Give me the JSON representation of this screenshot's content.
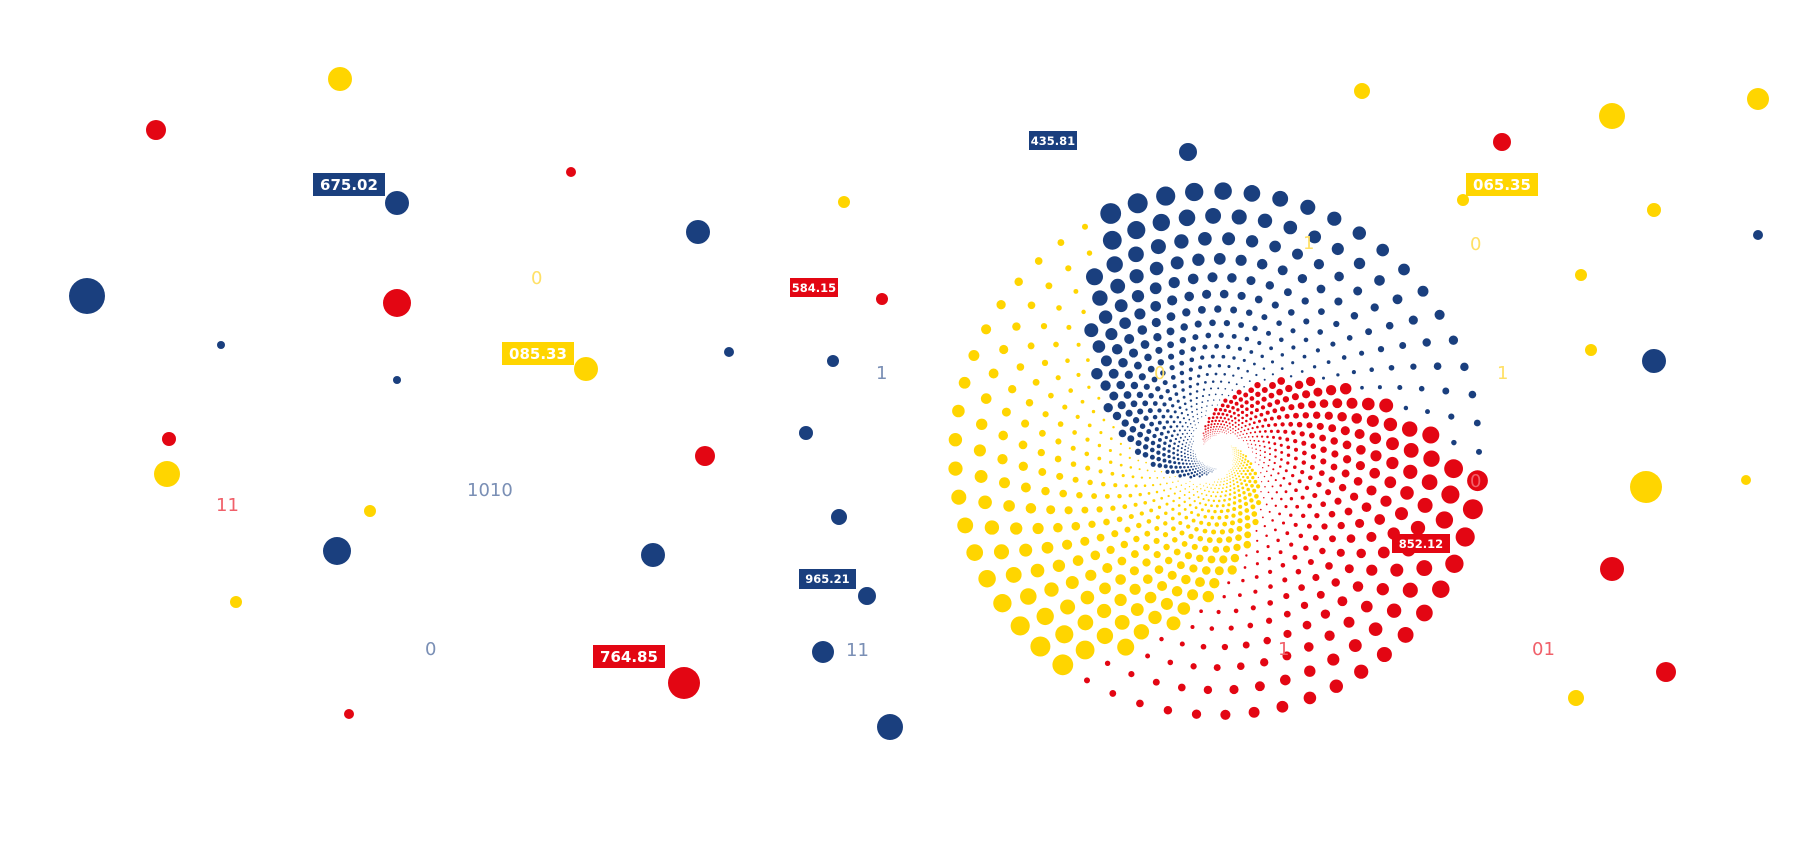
{
  "colors": {
    "blue": "#1a3f7e",
    "red": "#e30613",
    "yellow": "#ffd500"
  },
  "value_tags": [
    {
      "text": "675.02",
      "color": "blue"
    },
    {
      "text": "085.33",
      "color": "yellow"
    },
    {
      "text": "764.85",
      "color": "red"
    },
    {
      "text": "584.15",
      "color": "red"
    },
    {
      "text": "435.81",
      "color": "blue"
    },
    {
      "text": "065.35",
      "color": "yellow"
    },
    {
      "text": "852.12",
      "color": "red"
    },
    {
      "text": "965.21",
      "color": "blue"
    }
  ],
  "binary_digits": [
    {
      "text": "0",
      "color": "yellow"
    },
    {
      "text": "1010",
      "color": "blue"
    },
    {
      "text": "11",
      "color": "red"
    },
    {
      "text": "0",
      "color": "blue"
    },
    {
      "text": "1",
      "color": "blue"
    },
    {
      "text": "11",
      "color": "blue"
    },
    {
      "text": "0",
      "color": "yellow"
    },
    {
      "text": "1",
      "color": "yellow"
    },
    {
      "text": "0",
      "color": "yellow"
    },
    {
      "text": "1",
      "color": "yellow"
    },
    {
      "text": "0",
      "color": "red"
    },
    {
      "text": "1",
      "color": "red"
    },
    {
      "text": "01",
      "color": "red"
    }
  ]
}
